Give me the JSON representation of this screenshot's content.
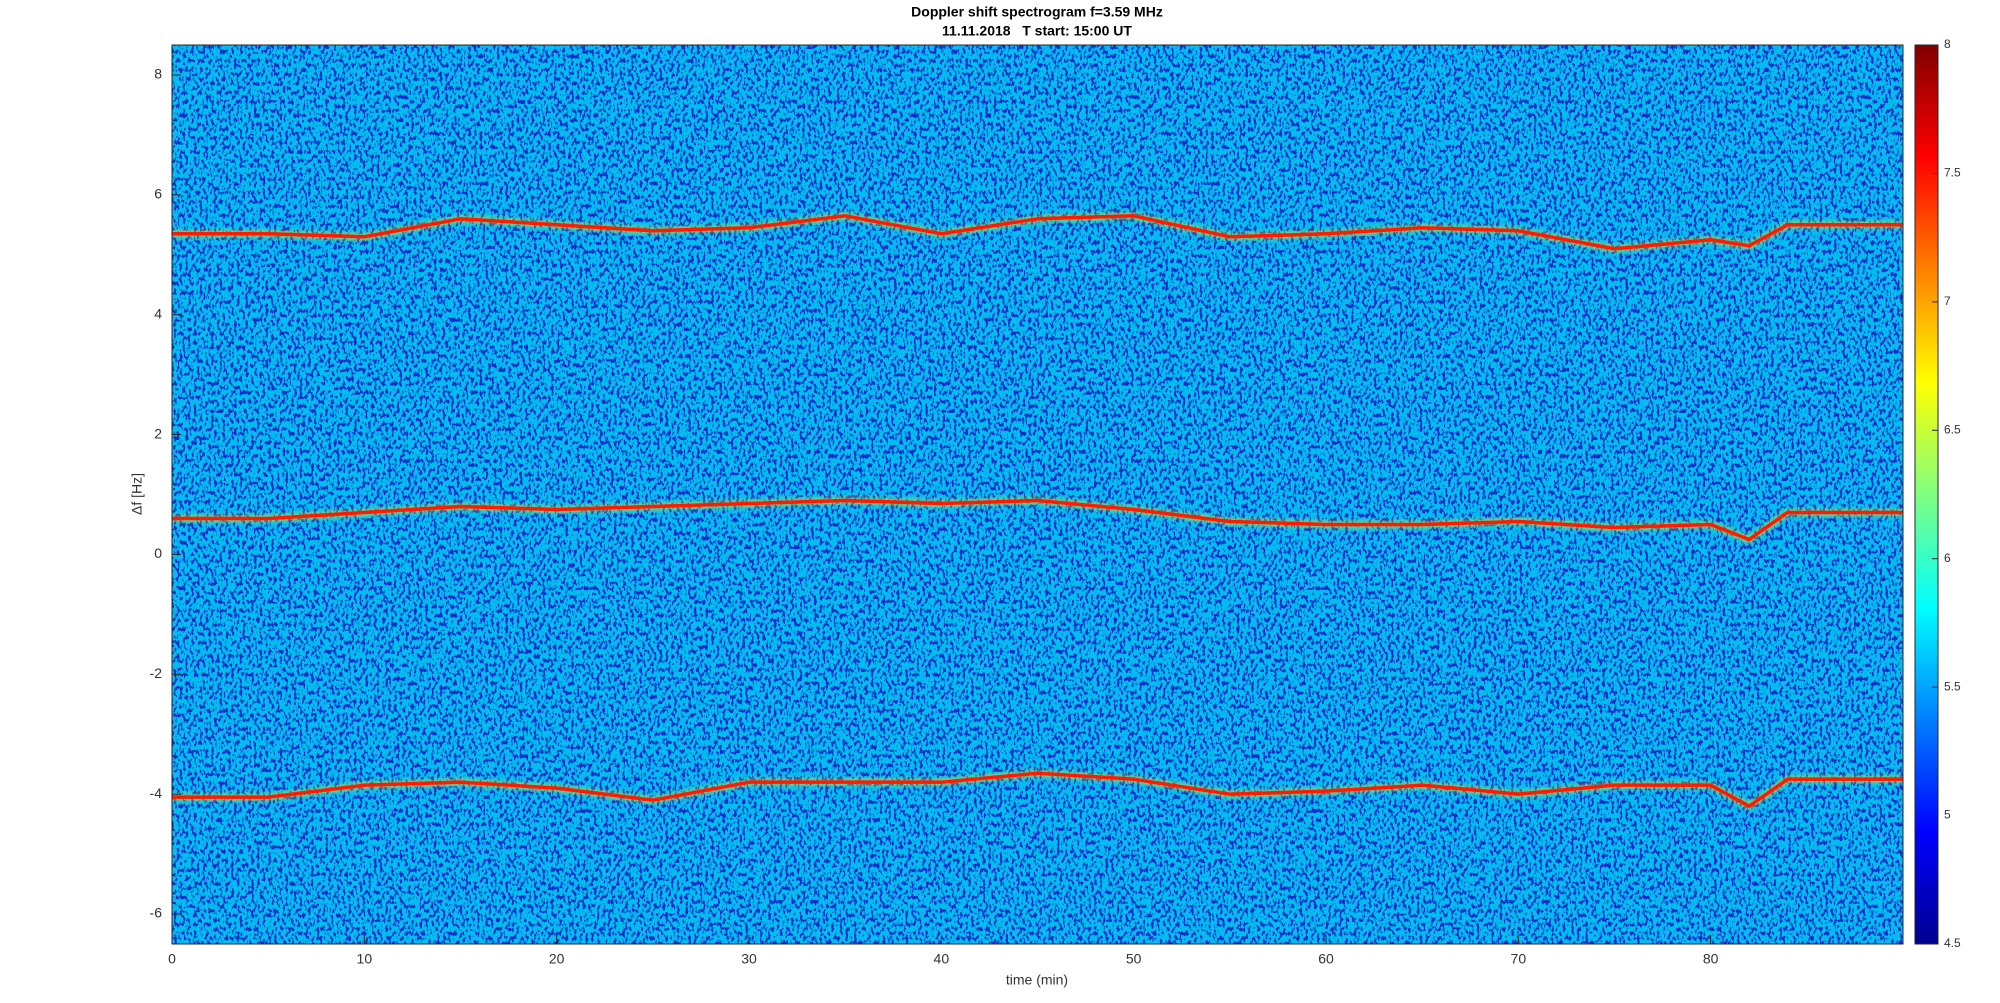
{
  "chart_data": {
    "type": "spectrogram",
    "title": "Doppler shift spectrogram f=3.59 MHz",
    "subtitle": "11.11.2018   T start: 15:00 UT",
    "x_label": "time (min)",
    "y_label": "Δf [Hz]",
    "xlim": [
      0,
      90
    ],
    "xticks": [
      0,
      10,
      20,
      30,
      40,
      50,
      60,
      70,
      80
    ],
    "ylim": [
      -6.5,
      8.5
    ],
    "yticks": [
      -6,
      -4,
      -2,
      0,
      2,
      4,
      6,
      8
    ],
    "x": [
      0,
      5,
      10,
      15,
      20,
      25,
      30,
      35,
      40,
      45,
      50,
      55,
      60,
      65,
      70,
      75,
      80,
      82,
      84,
      90
    ],
    "series": [
      {
        "color": "#ff1a00",
        "values": [
          5.35,
          5.35,
          5.3,
          5.6,
          5.5,
          5.4,
          5.45,
          5.65,
          5.35,
          5.6,
          5.65,
          5.3,
          5.35,
          5.45,
          5.4,
          5.1,
          5.25,
          5.15,
          5.5,
          5.5
        ]
      },
      {
        "color": "#ff1a00",
        "values": [
          0.6,
          0.6,
          0.7,
          0.8,
          0.75,
          0.8,
          0.85,
          0.9,
          0.85,
          0.9,
          0.75,
          0.55,
          0.5,
          0.5,
          0.55,
          0.45,
          0.5,
          0.25,
          0.7,
          0.7
        ]
      },
      {
        "color": "#ff1a00",
        "values": [
          -4.05,
          -4.05,
          -3.85,
          -3.8,
          -3.9,
          -4.1,
          -3.8,
          -3.8,
          -3.8,
          -3.65,
          -3.75,
          -4.0,
          -3.95,
          -3.85,
          -4.0,
          -3.85,
          -3.85,
          -4.2,
          -3.75,
          -3.75
        ]
      }
    ],
    "colorbar": {
      "clim": [
        4.5,
        8
      ],
      "ticks": [
        4.5,
        5,
        5.5,
        6,
        6.5,
        7,
        7.5,
        8
      ],
      "colormap": "jet"
    }
  }
}
